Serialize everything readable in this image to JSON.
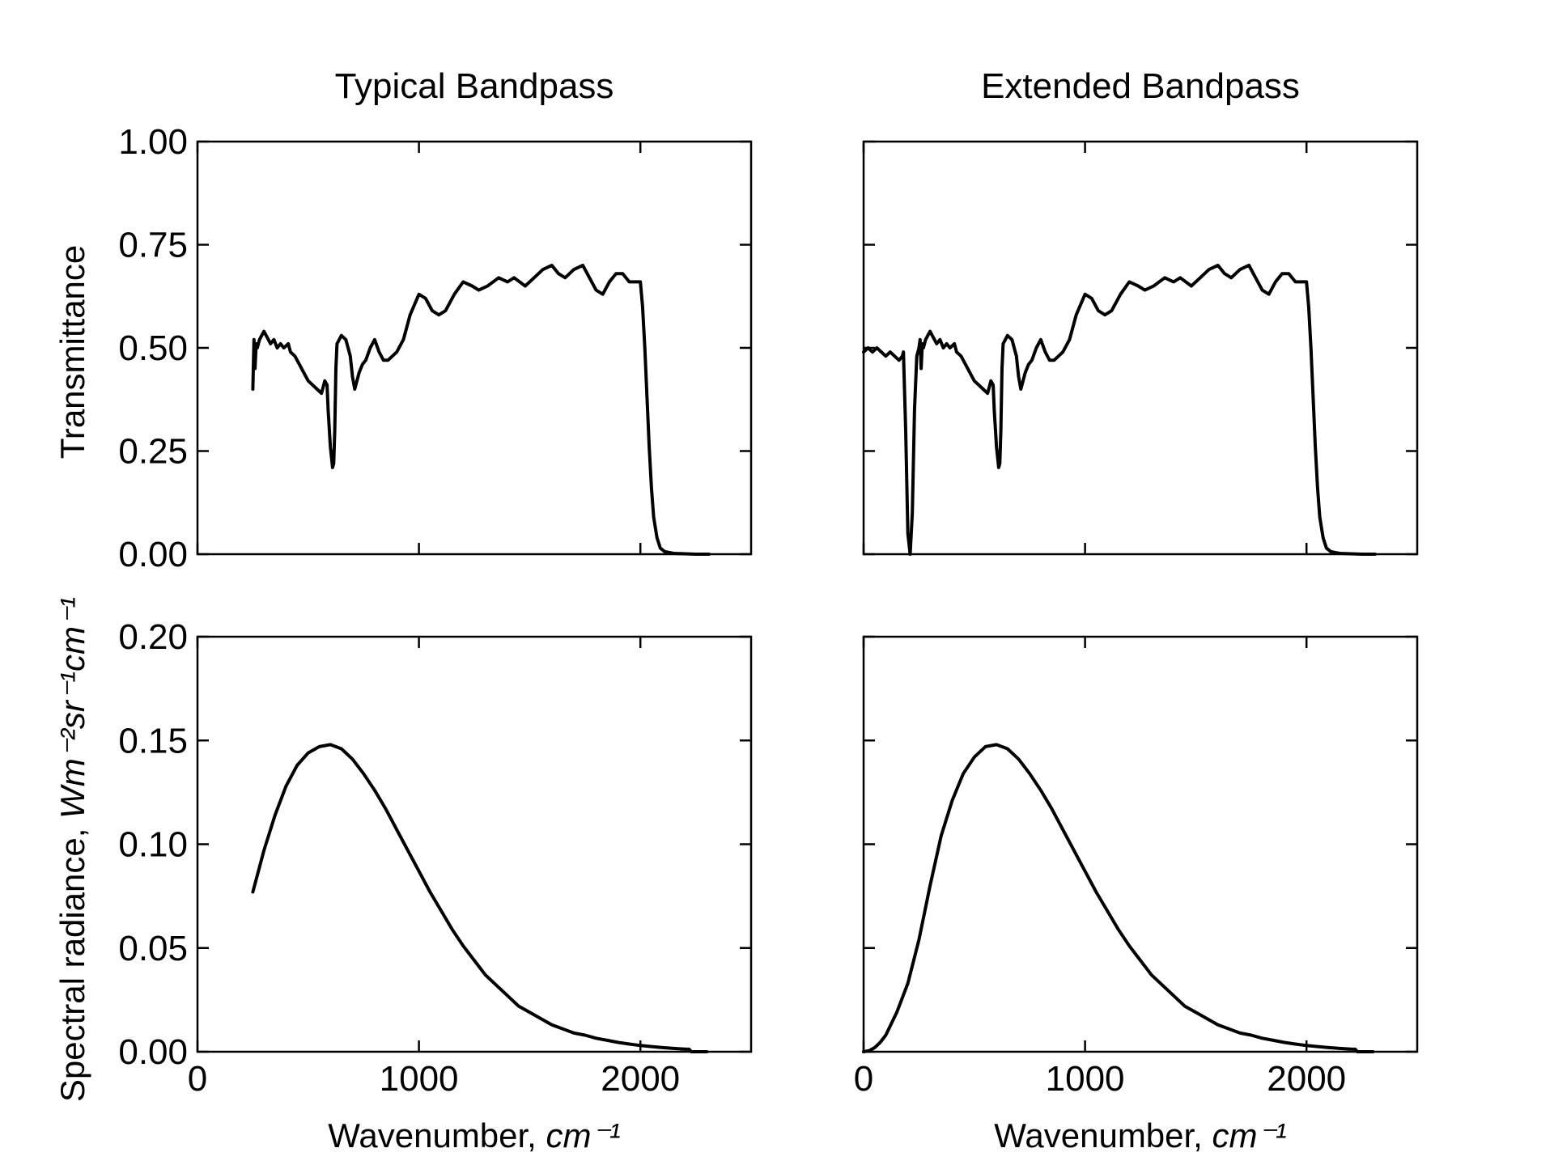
{
  "chart_data": [
    {
      "type": "line",
      "panel": "top-left",
      "title": "Typical Bandpass",
      "ylabel": "Transmittance",
      "xlim": [
        0,
        2500
      ],
      "ylim": [
        0,
        1
      ],
      "yticks": [
        "0.00",
        "0.25",
        "0.50",
        "0.75",
        "1.00"
      ],
      "xticks": [
        0,
        1000,
        2000
      ],
      "show_xticklabels": false,
      "show_yticklabels": true,
      "series": [
        {
          "x": [
            250,
            255,
            260,
            265,
            270,
            280,
            290,
            300,
            310,
            320,
            330,
            345,
            360,
            375,
            390,
            410,
            420,
            440,
            460,
            480,
            500,
            520,
            540,
            560,
            575,
            585,
            590,
            600,
            610,
            615,
            620,
            625,
            630,
            640,
            650,
            670,
            690,
            700,
            710,
            720,
            730,
            745,
            760,
            780,
            800,
            820,
            840,
            860,
            880,
            900,
            930,
            960,
            1000,
            1030,
            1060,
            1090,
            1120,
            1160,
            1200,
            1240,
            1270,
            1310,
            1360,
            1400,
            1430,
            1480,
            1520,
            1560,
            1600,
            1630,
            1660,
            1700,
            1740,
            1770,
            1800,
            1830,
            1860,
            1890,
            1920,
            1950,
            1970,
            1990,
            2000,
            2010,
            2020,
            2030,
            2040,
            2050,
            2060,
            2075,
            2090,
            2110,
            2150,
            2200,
            2250,
            2310
          ],
          "y": [
            0.4,
            0.52,
            0.45,
            0.51,
            0.5,
            0.52,
            0.53,
            0.54,
            0.53,
            0.52,
            0.51,
            0.52,
            0.5,
            0.51,
            0.5,
            0.51,
            0.49,
            0.48,
            0.46,
            0.44,
            0.42,
            0.41,
            0.4,
            0.39,
            0.42,
            0.41,
            0.35,
            0.26,
            0.21,
            0.22,
            0.3,
            0.45,
            0.51,
            0.52,
            0.53,
            0.52,
            0.48,
            0.43,
            0.4,
            0.42,
            0.44,
            0.46,
            0.47,
            0.5,
            0.52,
            0.49,
            0.47,
            0.47,
            0.48,
            0.49,
            0.52,
            0.58,
            0.63,
            0.62,
            0.59,
            0.58,
            0.59,
            0.63,
            0.66,
            0.65,
            0.64,
            0.65,
            0.67,
            0.66,
            0.67,
            0.65,
            0.67,
            0.69,
            0.7,
            0.68,
            0.67,
            0.69,
            0.7,
            0.67,
            0.64,
            0.63,
            0.66,
            0.68,
            0.68,
            0.66,
            0.66,
            0.66,
            0.66,
            0.6,
            0.5,
            0.38,
            0.26,
            0.16,
            0.09,
            0.04,
            0.015,
            0.006,
            0.002,
            0.001,
            0.0,
            0.0
          ]
        }
      ]
    },
    {
      "type": "line",
      "panel": "top-right",
      "title": "Extended Bandpass",
      "ylabel": "",
      "xlim": [
        0,
        2500
      ],
      "ylim": [
        0,
        1
      ],
      "yticks": [
        "0.00",
        "0.25",
        "0.50",
        "0.75",
        "1.00"
      ],
      "xticks": [
        0,
        1000,
        2000
      ],
      "show_xticklabels": false,
      "show_yticklabels": false,
      "series": [
        {
          "x": [
            0,
            20,
            40,
            60,
            80,
            100,
            120,
            140,
            160,
            175,
            180,
            190,
            200,
            210,
            220,
            230,
            240,
            250,
            255,
            260,
            265,
            270,
            280,
            290,
            300,
            310,
            320,
            330,
            345,
            360,
            375,
            390,
            410,
            420,
            440,
            460,
            480,
            500,
            520,
            540,
            560,
            575,
            585,
            590,
            600,
            610,
            615,
            620,
            625,
            630,
            640,
            650,
            670,
            690,
            700,
            710,
            720,
            730,
            745,
            760,
            780,
            800,
            820,
            840,
            860,
            880,
            900,
            930,
            960,
            1000,
            1030,
            1060,
            1090,
            1120,
            1160,
            1200,
            1240,
            1270,
            1310,
            1360,
            1400,
            1430,
            1480,
            1520,
            1560,
            1600,
            1630,
            1660,
            1700,
            1740,
            1770,
            1800,
            1830,
            1860,
            1890,
            1920,
            1950,
            1970,
            1990,
            2000,
            2010,
            2020,
            2030,
            2040,
            2050,
            2060,
            2075,
            2090,
            2110,
            2150,
            2200,
            2250,
            2310
          ],
          "y": [
            0.49,
            0.5,
            0.49,
            0.5,
            0.49,
            0.48,
            0.49,
            0.48,
            0.47,
            0.48,
            0.49,
            0.3,
            0.05,
            0.0,
            0.1,
            0.35,
            0.48,
            0.5,
            0.52,
            0.45,
            0.51,
            0.5,
            0.52,
            0.53,
            0.54,
            0.53,
            0.52,
            0.51,
            0.52,
            0.5,
            0.51,
            0.5,
            0.51,
            0.49,
            0.48,
            0.46,
            0.44,
            0.42,
            0.41,
            0.4,
            0.39,
            0.42,
            0.41,
            0.35,
            0.26,
            0.21,
            0.22,
            0.3,
            0.45,
            0.51,
            0.52,
            0.53,
            0.52,
            0.48,
            0.43,
            0.4,
            0.42,
            0.44,
            0.46,
            0.47,
            0.5,
            0.52,
            0.49,
            0.47,
            0.47,
            0.48,
            0.49,
            0.52,
            0.58,
            0.63,
            0.62,
            0.59,
            0.58,
            0.59,
            0.63,
            0.66,
            0.65,
            0.64,
            0.65,
            0.67,
            0.66,
            0.67,
            0.65,
            0.67,
            0.69,
            0.7,
            0.68,
            0.67,
            0.69,
            0.7,
            0.67,
            0.64,
            0.63,
            0.66,
            0.68,
            0.68,
            0.66,
            0.66,
            0.66,
            0.66,
            0.6,
            0.5,
            0.38,
            0.26,
            0.16,
            0.09,
            0.04,
            0.015,
            0.006,
            0.002,
            0.001,
            0.0,
            0.0
          ]
        }
      ]
    },
    {
      "type": "line",
      "panel": "bottom-left",
      "title": "",
      "ylabel": "Spectral radiance, ",
      "ylabel_units": "Wm⁻²sr⁻¹cm⁻¹",
      "xlabel": "Wavenumber, ",
      "xlabel_units": "cm⁻¹",
      "xlim": [
        0,
        2500
      ],
      "ylim": [
        0,
        0.2
      ],
      "yticks": [
        "0.00",
        "0.05",
        "0.10",
        "0.15",
        "0.20"
      ],
      "xticks": [
        "0",
        "1000",
        "2000"
      ],
      "show_xticklabels": true,
      "show_yticklabels": true,
      "series": [
        {
          "x": [
            250,
            300,
            350,
            400,
            450,
            500,
            550,
            600,
            650,
            700,
            750,
            800,
            850,
            900,
            950,
            1000,
            1050,
            1100,
            1150,
            1200,
            1250,
            1300,
            1350,
            1400,
            1450,
            1500,
            1550,
            1600,
            1650,
            1700,
            1750,
            1800,
            1850,
            1900,
            1950,
            2000,
            2050,
            2100,
            2150,
            2200,
            2220,
            2230,
            2300
          ],
          "y": [
            0.077,
            0.097,
            0.114,
            0.128,
            0.138,
            0.144,
            0.147,
            0.148,
            0.146,
            0.141,
            0.134,
            0.126,
            0.117,
            0.107,
            0.097,
            0.087,
            0.077,
            0.068,
            0.059,
            0.051,
            0.044,
            0.037,
            0.032,
            0.027,
            0.022,
            0.019,
            0.016,
            0.013,
            0.011,
            0.009,
            0.008,
            0.0065,
            0.0055,
            0.0045,
            0.0037,
            0.003,
            0.0025,
            0.002,
            0.0016,
            0.0013,
            0.0012,
            0.0,
            0.0
          ]
        }
      ]
    },
    {
      "type": "line",
      "panel": "bottom-right",
      "title": "",
      "ylabel": "",
      "xlabel": "Wavenumber, ",
      "xlabel_units": "cm⁻¹",
      "xlim": [
        0,
        2500
      ],
      "ylim": [
        0,
        0.2
      ],
      "yticks": [
        "0.00",
        "0.05",
        "0.10",
        "0.15",
        "0.20"
      ],
      "xticks": [
        "0",
        "1000",
        "2000"
      ],
      "show_xticklabels": true,
      "show_yticklabels": false,
      "series": [
        {
          "x": [
            0,
            25,
            50,
            75,
            100,
            150,
            200,
            250,
            300,
            350,
            400,
            450,
            500,
            550,
            600,
            650,
            700,
            750,
            800,
            850,
            900,
            950,
            1000,
            1050,
            1100,
            1150,
            1200,
            1250,
            1300,
            1350,
            1400,
            1450,
            1500,
            1550,
            1600,
            1650,
            1700,
            1750,
            1800,
            1850,
            1900,
            1950,
            2000,
            2050,
            2100,
            2150,
            2200,
            2220,
            2230,
            2300
          ],
          "y": [
            0.0,
            0.0005,
            0.002,
            0.0045,
            0.008,
            0.019,
            0.033,
            0.054,
            0.08,
            0.104,
            0.121,
            0.134,
            0.142,
            0.147,
            0.148,
            0.146,
            0.141,
            0.134,
            0.126,
            0.117,
            0.107,
            0.097,
            0.087,
            0.077,
            0.068,
            0.059,
            0.051,
            0.044,
            0.037,
            0.032,
            0.027,
            0.022,
            0.019,
            0.016,
            0.013,
            0.011,
            0.009,
            0.008,
            0.0065,
            0.0055,
            0.0045,
            0.0037,
            0.003,
            0.0025,
            0.002,
            0.0016,
            0.0013,
            0.0012,
            0.0,
            0.0
          ]
        }
      ]
    }
  ]
}
